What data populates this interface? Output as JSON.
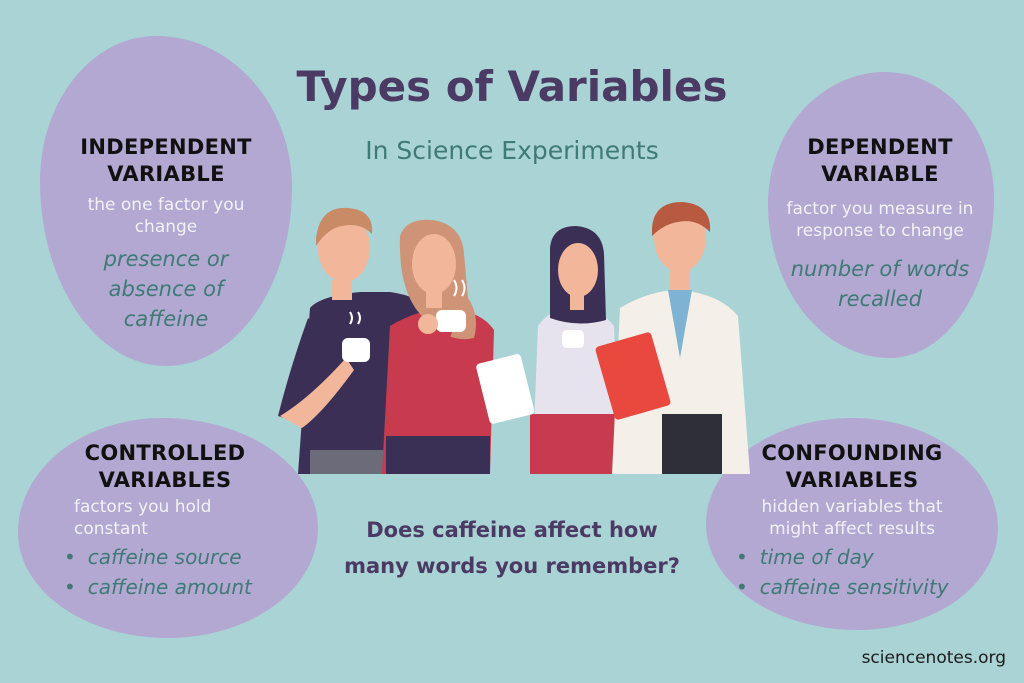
{
  "title": "Types of Variables",
  "subtitle": "In Science Experiments",
  "independent": {
    "heading_line1": "INDEPENDENT",
    "heading_line2": "VARIABLE",
    "desc_line1": "the one factor you",
    "desc_line2": "change",
    "example_line1": "presence or",
    "example_line2": "absence of",
    "example_line3": "caffeine"
  },
  "dependent": {
    "heading_line1": "DEPENDENT",
    "heading_line2": "VARIABLE",
    "desc_line1": "factor you measure in",
    "desc_line2": "response to change",
    "example_line1": "number of words",
    "example_line2": "recalled"
  },
  "controlled": {
    "heading_line1": "CONTROLLED",
    "heading_line2": "VARIABLES",
    "desc_line1": "factors you hold",
    "desc_line2": "constant",
    "bullets": [
      "caffeine source",
      "caffeine amount"
    ]
  },
  "confounding": {
    "heading_line1": "CONFOUNDING",
    "heading_line2": "VARIABLES",
    "desc_line1": "hidden variables that",
    "desc_line2": "might affect results",
    "bullets": [
      "time of day",
      "caffeine sensitivity"
    ]
  },
  "question_line1": "Does caffeine affect how",
  "question_line2": "many words you remember?",
  "footer": "sciencenotes.org",
  "colors": {
    "background": "#a9d3d4",
    "blob": "#b2a8d1",
    "title": "#4b3a63",
    "accent": "#3f7a76"
  }
}
